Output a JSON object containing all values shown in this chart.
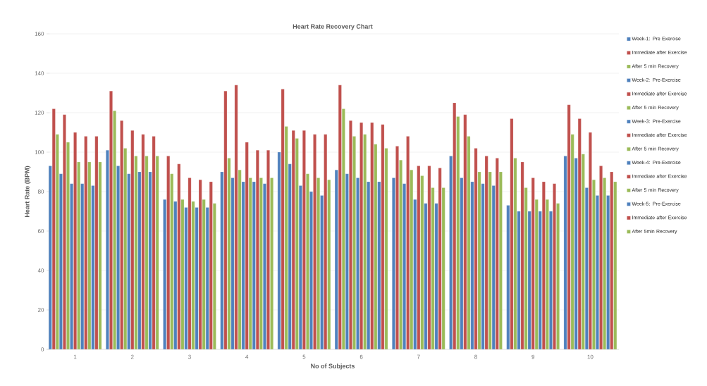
{
  "chart_data": {
    "type": "bar",
    "title": "Heart Rate Recovery Chart",
    "xlabel": "No of Subjects",
    "ylabel": "Heart Rate (BPM)",
    "categories": [
      "1",
      "2",
      "3",
      "4",
      "5",
      "6",
      "7",
      "8",
      "9",
      "10"
    ],
    "ylim": [
      0,
      160
    ],
    "yticks": [
      0,
      20,
      40,
      60,
      80,
      100,
      120,
      140,
      160
    ],
    "grid": "y",
    "legend": "right",
    "series": [
      {
        "name": "Week-1: Pre Exercise",
        "color": "#4f81bd",
        "values": [
          93,
          101,
          76,
          90,
          100,
          91,
          87,
          98,
          73,
          98
        ]
      },
      {
        "name": "Immediate after Exercise",
        "color": "#c0504d",
        "values": [
          122,
          131,
          98,
          131,
          132,
          134,
          103,
          125,
          117,
          124
        ]
      },
      {
        "name": "After 5 min Recovery",
        "color": "#9bbb59",
        "values": [
          109,
          121,
          89,
          97,
          113,
          122,
          96,
          118,
          97,
          109
        ]
      },
      {
        "name": "Week-2: Pre-Exercise",
        "color": "#4f81bd",
        "values": [
          89,
          93,
          75,
          87,
          94,
          89,
          84,
          87,
          70,
          97
        ]
      },
      {
        "name": "Immediate after Exercise",
        "color": "#c0504d",
        "values": [
          119,
          116,
          94,
          134,
          111,
          116,
          108,
          119,
          95,
          117
        ]
      },
      {
        "name": "After 5 min Recovery",
        "color": "#9bbb59",
        "values": [
          105,
          102,
          76,
          91,
          107,
          108,
          91,
          108,
          82,
          99
        ]
      },
      {
        "name": "Week-3: Pre-Exercise",
        "color": "#4f81bd",
        "values": [
          84,
          89,
          72,
          85,
          83,
          87,
          76,
          85,
          70,
          82
        ]
      },
      {
        "name": "Immediate after Exercise",
        "color": "#c0504d",
        "values": [
          110,
          111,
          87,
          105,
          111,
          115,
          93,
          102,
          87,
          110
        ]
      },
      {
        "name": "After 5 min Recovery",
        "color": "#9bbb59",
        "values": [
          95,
          98,
          75,
          87,
          89,
          109,
          88,
          90,
          76,
          86
        ]
      },
      {
        "name": "Week-4: Pre-Exercise",
        "color": "#4f81bd",
        "values": [
          84,
          90,
          72,
          85,
          80,
          85,
          74,
          84,
          70,
          78
        ]
      },
      {
        "name": "Immediate after Exercise",
        "color": "#c0504d",
        "values": [
          108,
          109,
          86,
          101,
          109,
          115,
          93,
          98,
          85,
          93
        ]
      },
      {
        "name": "After 5 min Recovery",
        "color": "#9bbb59",
        "values": [
          95,
          98,
          76,
          87,
          87,
          104,
          82,
          90,
          76,
          87
        ]
      },
      {
        "name": "Week-5: Pre-Exercise",
        "color": "#4f81bd",
        "values": [
          83,
          90,
          72,
          84,
          78,
          85,
          74,
          83,
          70,
          78
        ]
      },
      {
        "name": "Immediate after Exercise",
        "color": "#c0504d",
        "values": [
          108,
          108,
          85,
          101,
          109,
          114,
          92,
          97,
          84,
          90
        ]
      },
      {
        "name": "After 5min Recovery",
        "color": "#9bbb59",
        "values": [
          95,
          98,
          74,
          87,
          86,
          102,
          82,
          90,
          74,
          85
        ]
      }
    ]
  }
}
